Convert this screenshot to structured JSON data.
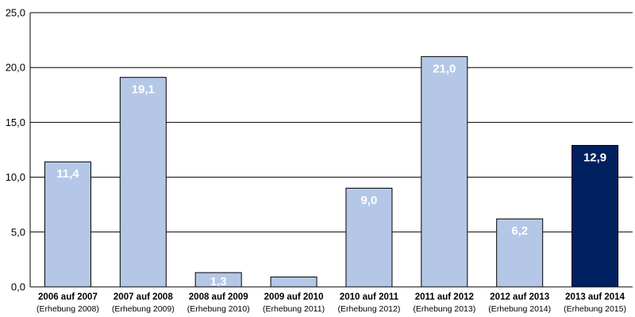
{
  "chart_data": {
    "type": "bar",
    "categories": [
      {
        "label": "2006 auf 2007",
        "sub": "(Erhebung 2008)"
      },
      {
        "label": "2007 auf 2008",
        "sub": "(Erhebung 2009)"
      },
      {
        "label": "2008 auf 2009",
        "sub": "(Erhebung 2010)"
      },
      {
        "label": "2009 auf 2010",
        "sub": "(Erhebung 2011)"
      },
      {
        "label": "2010 auf 2011",
        "sub": "(Erhebung 2012)"
      },
      {
        "label": "2011 auf 2012",
        "sub": "(Erhebung 2013)"
      },
      {
        "label": "2012 auf 2013",
        "sub": "(Erhebung 2014)"
      },
      {
        "label": "2013 auf 2014",
        "sub": "(Erhebung 2015)"
      }
    ],
    "values": [
      11.4,
      19.1,
      1.3,
      0.9,
      9.0,
      21.0,
      6.2,
      12.9
    ],
    "data_labels": [
      "11,4",
      "19,1",
      "1,3",
      "",
      "9,0",
      "21,0",
      "6,2",
      "12,9"
    ],
    "yticks": [
      "0,0",
      "5,0",
      "10,0",
      "15,0",
      "20,0",
      "25,0"
    ],
    "ylim": [
      0,
      25
    ],
    "grid": true,
    "highlight_index": 7,
    "colors": {
      "bar": "#b4c7e7",
      "bar_highlight": "#002060",
      "bar_stroke": "#000000",
      "grid": "#000000"
    }
  }
}
